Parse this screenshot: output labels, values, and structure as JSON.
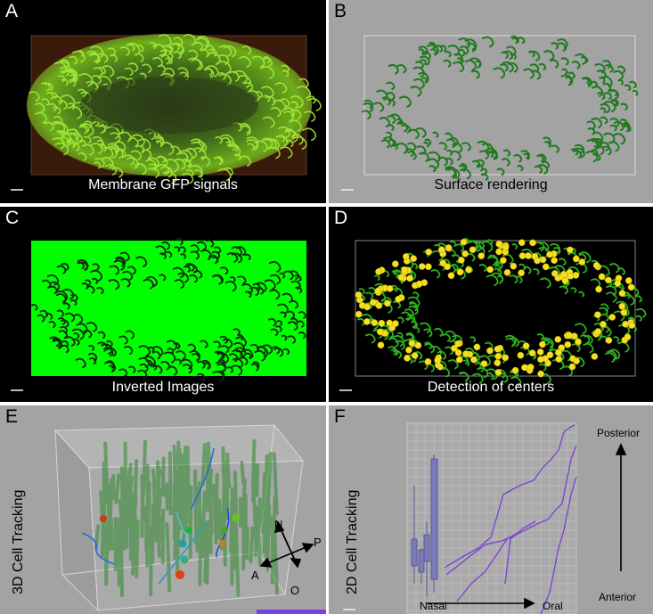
{
  "panels": {
    "A": {
      "letter": "A",
      "caption": "Membrane GFP signals"
    },
    "B": {
      "letter": "B",
      "caption": "Surface rendering"
    },
    "C": {
      "letter": "C",
      "caption": "Inverted Images"
    },
    "D": {
      "letter": "D",
      "caption": "Detection of centers"
    },
    "E": {
      "letter": "E",
      "side_label": "3D Cell Tracking",
      "axes": {
        "n": "N",
        "p": "P",
        "a": "A",
        "o": "O"
      }
    },
    "F": {
      "letter": "F",
      "side_label": "2D Cell Tracking",
      "posterior": "Posterior",
      "anterior": "Anterior",
      "nasal": "Nasal",
      "oral": "Oral"
    }
  },
  "colors": {
    "gfp_green": "#7fd21e",
    "render_green": "#1f7a1f",
    "inverted_bg": "#00ff00",
    "center_yellow": "#f5e020",
    "track_purple": "#7a3fd6",
    "panel_gray": "#a3a3a3"
  }
}
